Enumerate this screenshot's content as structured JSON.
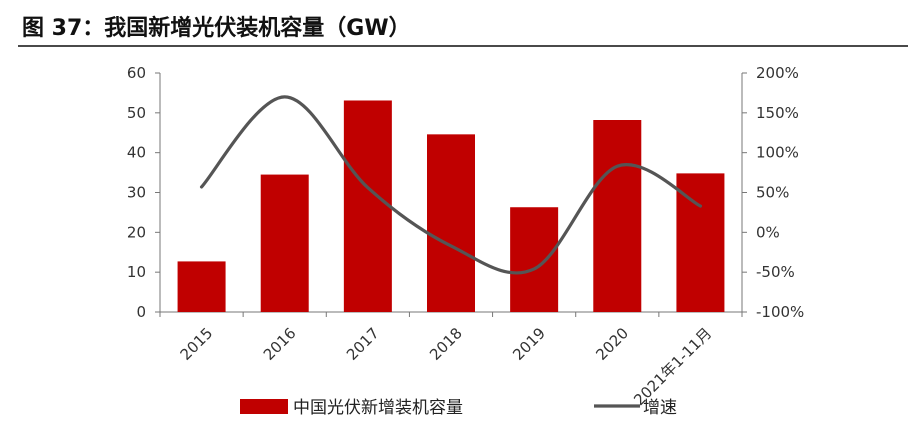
{
  "title": "图 37：我国新增光伏装机容量（GW）",
  "chart_data": {
    "type": "bar",
    "categories": [
      "2015",
      "2016",
      "2017",
      "2018",
      "2019",
      "2020",
      "2021年1-11月"
    ],
    "series": [
      {
        "name": "中国光伏新增装机容量",
        "type": "bar",
        "axis": "left",
        "color": "#c00000",
        "values": [
          12.7,
          34.5,
          53.1,
          44.6,
          26.3,
          48.2,
          34.8
        ]
      },
      {
        "name": "增速",
        "type": "line",
        "axis": "right",
        "color": "#555555",
        "values": [
          57,
          170,
          56,
          -17,
          -46,
          83,
          33
        ]
      }
    ],
    "left_axis": {
      "min": 0,
      "max": 60,
      "ticks": [
        "0",
        "10",
        "20",
        "30",
        "40",
        "50",
        "60"
      ]
    },
    "right_axis": {
      "min": -100,
      "max": 200,
      "ticks": [
        "-100%",
        "-50%",
        "0%",
        "50%",
        "100%",
        "150%",
        "200%"
      ]
    },
    "grid": false,
    "legend_position": "bottom"
  }
}
